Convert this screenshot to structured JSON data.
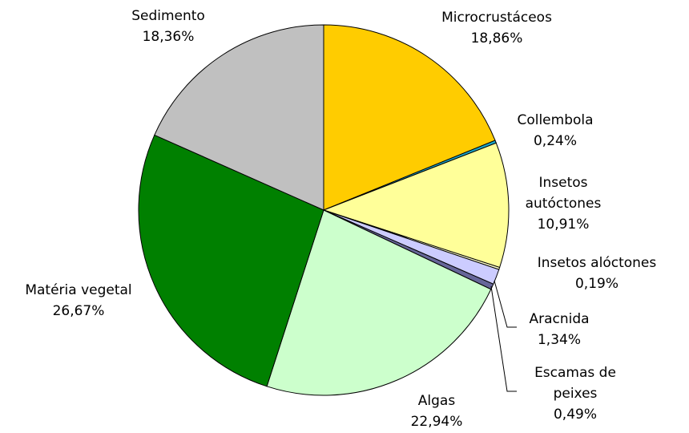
{
  "chart_data": {
    "type": "pie",
    "categories": [
      "Microcrustáceos",
      "Collembola",
      "Insetos autóctones",
      "Insetos alóctones",
      "Aracnida",
      "Escamas de peixes",
      "Algas",
      "Matéria vegetal",
      "Sedimento"
    ],
    "values": [
      18.86,
      0.24,
      10.91,
      0.19,
      1.34,
      0.49,
      22.94,
      26.67,
      18.36
    ],
    "value_labels": [
      "18,86%",
      "0,24%",
      "10,91%",
      "0,19%",
      "1,34%",
      "0,49%",
      "22,94%",
      "26,67%",
      "18,36%"
    ],
    "colors": [
      "#ffcc00",
      "#1aa6c8",
      "#ffff99",
      "#ffffcc",
      "#ccccff",
      "#666699",
      "#ccffcc",
      "#008000",
      "#c0c0c0"
    ]
  }
}
